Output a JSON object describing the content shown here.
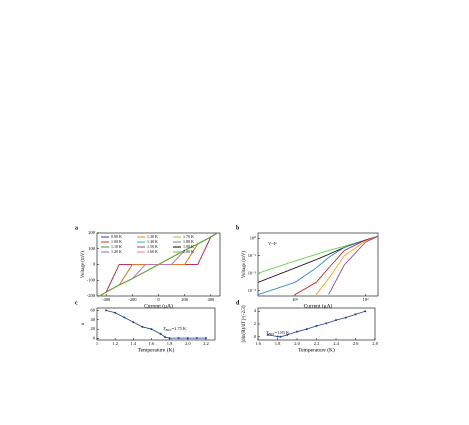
{
  "chart_data": [
    {
      "type": "line",
      "panel_label": "a",
      "xlabel": "Current (μA)",
      "ylabel": "Voltage (mV)",
      "x": [
        -450,
        -400,
        -300,
        -200,
        -100,
        0,
        100,
        200,
        300,
        400,
        450
      ],
      "xlim": [
        -470,
        470
      ],
      "xticks": [
        -400,
        -200,
        0,
        200,
        400
      ],
      "ylim": [
        -200,
        200
      ],
      "yticks": [
        -200,
        -100,
        0,
        100,
        200
      ],
      "series": [
        {
          "name": "0.90 K",
          "color": "#1f3fbf",
          "values": [
            -200,
            -175,
            0,
            0,
            0,
            0,
            0,
            0,
            0,
            175,
            200
          ]
        },
        {
          "name": "1.00 K",
          "color": "#d62728",
          "values": [
            -200,
            -175,
            0,
            0,
            0,
            0,
            0,
            0,
            0,
            175,
            200
          ]
        },
        {
          "name": "1.10 K",
          "color": "#2ca02c",
          "values": [
            -200,
            -175,
            -130,
            0,
            0,
            0,
            0,
            0,
            130,
            175,
            200
          ]
        },
        {
          "name": "1.20 K",
          "color": "#9467bd",
          "values": [
            -200,
            -175,
            -130,
            0,
            0,
            0,
            0,
            0,
            130,
            175,
            200
          ]
        },
        {
          "name": "1.30 K",
          "color": "#ff7f0e",
          "values": [
            -200,
            -175,
            -130,
            0,
            0,
            0,
            0,
            0,
            130,
            175,
            200
          ]
        },
        {
          "name": "1.40 K",
          "color": "#17becf",
          "values": [
            -200,
            -175,
            -130,
            -90,
            0,
            0,
            0,
            90,
            130,
            175,
            200
          ]
        },
        {
          "name": "1.50 K",
          "color": "#8c564b",
          "values": [
            -200,
            -175,
            -130,
            -90,
            0,
            0,
            0,
            90,
            130,
            175,
            200
          ]
        },
        {
          "name": "1.60 K",
          "color": "#e377c2",
          "values": [
            -200,
            -175,
            -130,
            -90,
            0,
            0,
            0,
            90,
            130,
            175,
            200
          ]
        },
        {
          "name": "1.70 K",
          "color": "#bcbd22",
          "values": [
            -200,
            -175,
            -130,
            -90,
            -45,
            0,
            45,
            90,
            130,
            175,
            200
          ]
        },
        {
          "name": "1.80 K",
          "color": "#7f7f7f",
          "values": [
            -200,
            -175,
            -130,
            -90,
            -45,
            0,
            45,
            90,
            130,
            175,
            200
          ]
        },
        {
          "name": "1.90 K",
          "color": "#000000",
          "values": [
            -200,
            -175,
            -130,
            -90,
            -45,
            0,
            45,
            90,
            130,
            175,
            200
          ]
        },
        {
          "name": "2.00 K",
          "color": "#66cc33",
          "values": [
            -200,
            -175,
            -130,
            -90,
            -45,
            0,
            45,
            90,
            130,
            175,
            200
          ]
        }
      ]
    },
    {
      "type": "line",
      "panel_label": "b",
      "xlabel": "Current (μA)",
      "ylabel": "Voltage (mV)",
      "xscale": "log",
      "yscale": "log",
      "annotation": "V~I³",
      "annotation_color": "#e03030",
      "x": [
        30,
        100,
        200,
        300,
        500,
        1000,
        1500
      ],
      "xlim": [
        30,
        1500
      ],
      "xticks": [
        {
          "value": 100,
          "label": "10²"
        },
        {
          "value": 1000,
          "label": "10³"
        }
      ],
      "ylim": [
        0.0005,
        2
      ],
      "yticks": [
        {
          "value": 0.001,
          "label": "10⁻³"
        },
        {
          "value": 0.01,
          "label": "10⁻²"
        },
        {
          "value": 0.1,
          "label": "10⁻¹"
        },
        {
          "value": 1,
          "label": "10⁰"
        }
      ],
      "series": [
        {
          "color": "#55cc33",
          "values": [
            0.01,
            0.05,
            0.12,
            0.2,
            0.35,
            0.8,
            1.3
          ]
        },
        {
          "color": "#000000",
          "values": [
            0.003,
            0.02,
            0.06,
            0.12,
            0.3,
            0.8,
            1.3
          ]
        },
        {
          "color": "#1f77d4",
          "values": [
            0.0006,
            0.003,
            0.02,
            0.08,
            0.3,
            0.8,
            1.3
          ]
        },
        {
          "color": "#c01818",
          "values": [
            null,
            0.0006,
            0.003,
            0.02,
            0.2,
            0.8,
            1.3
          ]
        },
        {
          "color": "#ff9900",
          "values": [
            null,
            null,
            0.0006,
            0.005,
            0.1,
            0.7,
            1.3
          ]
        },
        {
          "color": "#7a3fa0",
          "values": [
            null,
            null,
            null,
            0.0006,
            0.03,
            0.6,
            1.3
          ]
        }
      ]
    },
    {
      "type": "line",
      "panel_label": "c",
      "xlabel": "Temperature (K)",
      "ylabel": "a",
      "markers": true,
      "annotation": {
        "symbol": "T",
        "subscript": "BKT",
        "text": "=1.75 K"
      },
      "x": [
        1.1,
        1.2,
        1.3,
        1.4,
        1.5,
        1.6,
        1.7,
        1.75,
        1.8,
        1.9,
        2.0,
        2.1,
        2.2
      ],
      "xlim": [
        1.0,
        2.3
      ],
      "xticks": [
        1,
        1.2,
        1.4,
        1.6,
        1.8,
        {
          "value": 2,
          "label": "2.0"
        },
        2.2
      ],
      "ylim": [
        -3,
        65
      ],
      "yticks": [
        0,
        20,
        40,
        60
      ],
      "series": [
        {
          "color": "#1f3f8f",
          "values": [
            60,
            55,
            45,
            35,
            25,
            20,
            10,
            3,
            1,
            1,
            1,
            1,
            1
          ]
        }
      ]
    },
    {
      "type": "line",
      "panel_label": "d",
      "xlabel": "Temperature (K)",
      "ylabel": "[dln(R)/dT]^(-2/3)",
      "markers": true,
      "annotation": {
        "symbol": "T",
        "subscript": "BKT",
        "text": "=1.83 K"
      },
      "x": [
        1.7,
        1.8,
        1.83,
        1.9,
        2.0,
        2.1,
        2.2,
        2.3,
        2.4,
        2.5,
        2.6,
        2.7
      ],
      "xlim": [
        1.6,
        2.8
      ],
      "xticks": [
        1.6,
        1.8,
        {
          "value": 2,
          "label": "2.0"
        },
        2.2,
        2.4,
        2.6,
        2.8
      ],
      "ylim": [
        -0.5,
        4.5
      ],
      "yticks": [
        0,
        2,
        4
      ],
      "series": [
        {
          "color": "#1f3f8f",
          "values": [
            0.3,
            0.05,
            0,
            0.3,
            0.8,
            1.2,
            1.7,
            2.1,
            2.6,
            3.0,
            3.5,
            4.0
          ]
        }
      ]
    }
  ]
}
